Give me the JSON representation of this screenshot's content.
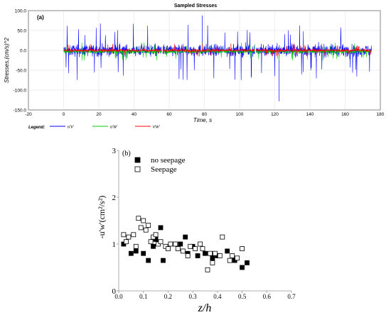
{
  "chart_data": [
    {
      "type": "line",
      "panel_label": "(a)",
      "title": "Sampled Stresses",
      "xlabel": "Time, s",
      "ylabel": "Stresses,(cm/s)^2",
      "xlim": [
        -20,
        180
      ],
      "ylim": [
        -150,
        100
      ],
      "x_ticks": [
        "-20",
        "0",
        "20",
        "40",
        "60",
        "80",
        "100",
        "120",
        "140",
        "160",
        "180"
      ],
      "y_ticks": [
        "100.0",
        "50.0",
        "0.0",
        "-50.0",
        "-100.0",
        "-150.0"
      ],
      "grid": true,
      "legend_title": "Legend:",
      "legend_position": "bottom",
      "series": [
        {
          "name": "u'v'",
          "color": "#0000ff",
          "x_range": [
            0,
            175
          ],
          "typical_amplitude": 25,
          "max": 88,
          "min": -128,
          "mean": 0
        },
        {
          "name": "u'w'",
          "color": "#00cc00",
          "x_range": [
            0,
            175
          ],
          "typical_amplitude": 8,
          "max": 20,
          "min": -25,
          "mean": -3
        },
        {
          "name": "v'w'",
          "color": "#ff0000",
          "x_range": [
            0,
            175
          ],
          "typical_amplitude": 6,
          "max": 18,
          "min": -15,
          "mean": 0
        }
      ],
      "gaps_at_x": [
        56,
        109
      ]
    },
    {
      "type": "scatter",
      "panel_label": "(b)",
      "xlabel": "z/h",
      "ylabel": "-u'w'(cm²/s²)",
      "xlim": [
        0,
        0.7
      ],
      "ylim": [
        0,
        3
      ],
      "x_ticks": [
        "0.0",
        "0.1",
        "0.2",
        "0.3",
        "0.4",
        "0.5",
        "0.6",
        "0.7"
      ],
      "y_ticks": [
        "0",
        "1",
        "2",
        "3"
      ],
      "legend_position": "top-left",
      "series": [
        {
          "name": "no seepage",
          "marker": "filled-square",
          "points": [
            [
              0.02,
              1.0
            ],
            [
              0.05,
              0.8
            ],
            [
              0.07,
              0.85
            ],
            [
              0.1,
              0.8
            ],
            [
              0.12,
              0.65
            ],
            [
              0.14,
              0.95
            ],
            [
              0.15,
              1.1
            ],
            [
              0.17,
              1.35
            ],
            [
              0.18,
              0.65
            ],
            [
              0.25,
              1.0
            ],
            [
              0.27,
              1.15
            ],
            [
              0.28,
              0.8
            ],
            [
              0.3,
              0.95
            ],
            [
              0.32,
              0.75
            ],
            [
              0.35,
              0.8
            ],
            [
              0.38,
              0.7
            ],
            [
              0.4,
              0.75
            ],
            [
              0.44,
              0.85
            ],
            [
              0.47,
              0.65
            ],
            [
              0.5,
              0.5
            ],
            [
              0.52,
              0.6
            ]
          ]
        },
        {
          "name": "Seepage",
          "marker": "hollow-square",
          "points": [
            [
              0.02,
              1.2
            ],
            [
              0.03,
              1.05
            ],
            [
              0.04,
              1.15
            ],
            [
              0.06,
              1.2
            ],
            [
              0.07,
              0.95
            ],
            [
              0.08,
              1.55
            ],
            [
              0.09,
              1.35
            ],
            [
              0.1,
              1.5
            ],
            [
              0.11,
              1.3
            ],
            [
              0.12,
              1.4
            ],
            [
              0.13,
              1.05
            ],
            [
              0.14,
              1.15
            ],
            [
              0.15,
              1.2
            ],
            [
              0.16,
              1.0
            ],
            [
              0.17,
              1.05
            ],
            [
              0.19,
              0.95
            ],
            [
              0.2,
              0.9
            ],
            [
              0.21,
              1.0
            ],
            [
              0.23,
              1.0
            ],
            [
              0.24,
              0.9
            ],
            [
              0.26,
              0.85
            ],
            [
              0.28,
              0.75
            ],
            [
              0.29,
              0.95
            ],
            [
              0.31,
              0.9
            ],
            [
              0.33,
              1.0
            ],
            [
              0.34,
              0.9
            ],
            [
              0.36,
              0.45
            ],
            [
              0.37,
              0.8
            ],
            [
              0.38,
              0.6
            ],
            [
              0.39,
              0.8
            ],
            [
              0.41,
              0.75
            ],
            [
              0.42,
              1.15
            ],
            [
              0.45,
              0.65
            ],
            [
              0.46,
              0.75
            ],
            [
              0.48,
              0.7
            ],
            [
              0.5,
              0.9
            ]
          ]
        }
      ]
    }
  ]
}
